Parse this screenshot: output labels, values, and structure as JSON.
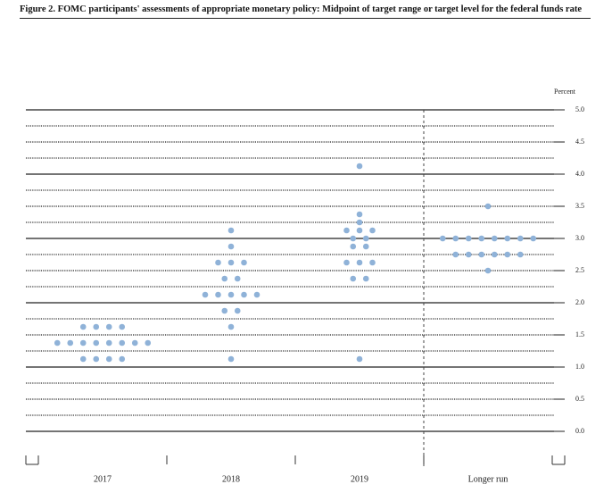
{
  "chart_data": {
    "type": "dotplot",
    "title": "Figure 2. FOMC participants' assessments of appropriate monetary policy: Midpoint of target range or target level for the federal funds rate",
    "y_unit": "Percent",
    "categories": [
      "2017",
      "2018",
      "2019",
      "Longer run"
    ],
    "color": "#8fb2d8",
    "values": [
      [
        1.125,
        1.125,
        1.125,
        1.125,
        1.375,
        1.375,
        1.375,
        1.375,
        1.375,
        1.375,
        1.375,
        1.375,
        1.625,
        1.625,
        1.625,
        1.625
      ],
      [
        1.125,
        1.625,
        1.875,
        1.875,
        2.125,
        2.125,
        2.125,
        2.125,
        2.125,
        2.375,
        2.375,
        2.625,
        2.625,
        2.625,
        2.875,
        3.125
      ],
      [
        1.125,
        2.375,
        2.375,
        2.625,
        2.625,
        2.625,
        2.875,
        2.875,
        3.0,
        3.0,
        3.125,
        3.125,
        3.125,
        3.25,
        3.375,
        4.125
      ],
      [
        2.5,
        2.75,
        2.75,
        2.75,
        2.75,
        2.75,
        2.75,
        3.0,
        3.0,
        3.0,
        3.0,
        3.0,
        3.0,
        3.0,
        3.0,
        3.5
      ]
    ],
    "ylim": [
      0,
      5
    ],
    "yticks": [
      {
        "value": 0,
        "label": "0.0"
      },
      0.5,
      {
        "value": 1,
        "label": "1.0"
      },
      1.5,
      {
        "value": 2,
        "label": "2.0"
      },
      2.5,
      {
        "value": 3,
        "label": "3.0"
      },
      3.5,
      {
        "value": 4,
        "label": "4.0"
      },
      4.5,
      {
        "value": 5,
        "label": "5.0"
      }
    ],
    "minor_yticks": [
      0.25,
      0.75,
      1.25,
      1.75,
      2.25,
      2.75,
      3.25,
      3.75,
      4.25,
      4.75
    ]
  }
}
